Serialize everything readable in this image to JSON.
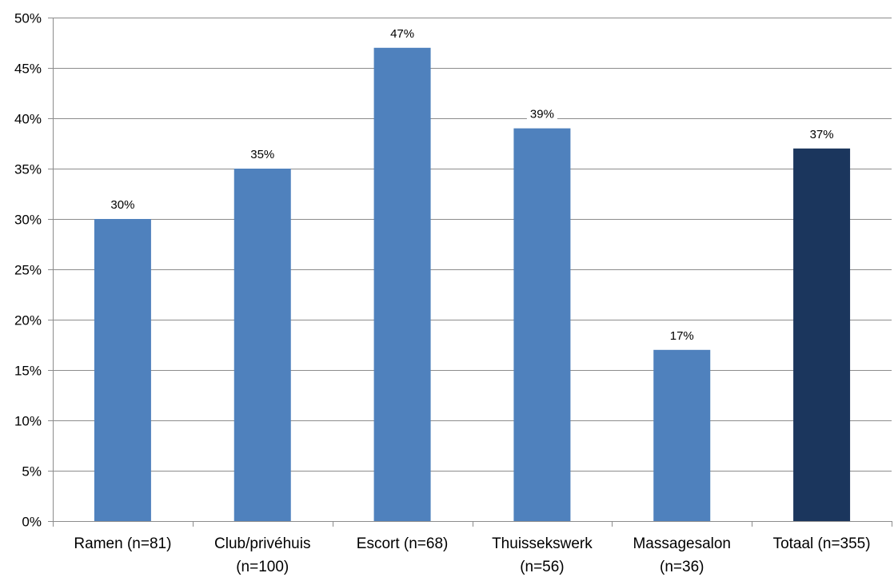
{
  "chart_data": {
    "type": "bar",
    "categories": [
      [
        "Ramen (n=81)"
      ],
      [
        "Club/privéhuis",
        "(n=100)"
      ],
      [
        "Escort (n=68)"
      ],
      [
        "Thuissekswerk",
        "(n=56)"
      ],
      [
        "Massagesalon",
        "(n=36)"
      ],
      [
        "Totaal (n=355)"
      ]
    ],
    "values": [
      30,
      35,
      47,
      39,
      17,
      37
    ],
    "data_labels": [
      "30%",
      "35%",
      "47%",
      "39%",
      "17%",
      "37%"
    ],
    "bar_colors": [
      "#4f81bd",
      "#4f81bd",
      "#4f81bd",
      "#4f81bd",
      "#4f81bd",
      "#1b365d"
    ],
    "ylim": [
      0,
      50
    ],
    "yticks": [
      0,
      5,
      10,
      15,
      20,
      25,
      30,
      35,
      40,
      45,
      50
    ],
    "ytick_labels": [
      "0%",
      "5%",
      "10%",
      "15%",
      "20%",
      "25%",
      "30%",
      "35%",
      "40%",
      "45%",
      "50%"
    ],
    "grid": true,
    "gridline_color": "#8c8c8c",
    "axis_color": "#8c8c8c",
    "title": "",
    "xlabel": "",
    "ylabel": ""
  }
}
